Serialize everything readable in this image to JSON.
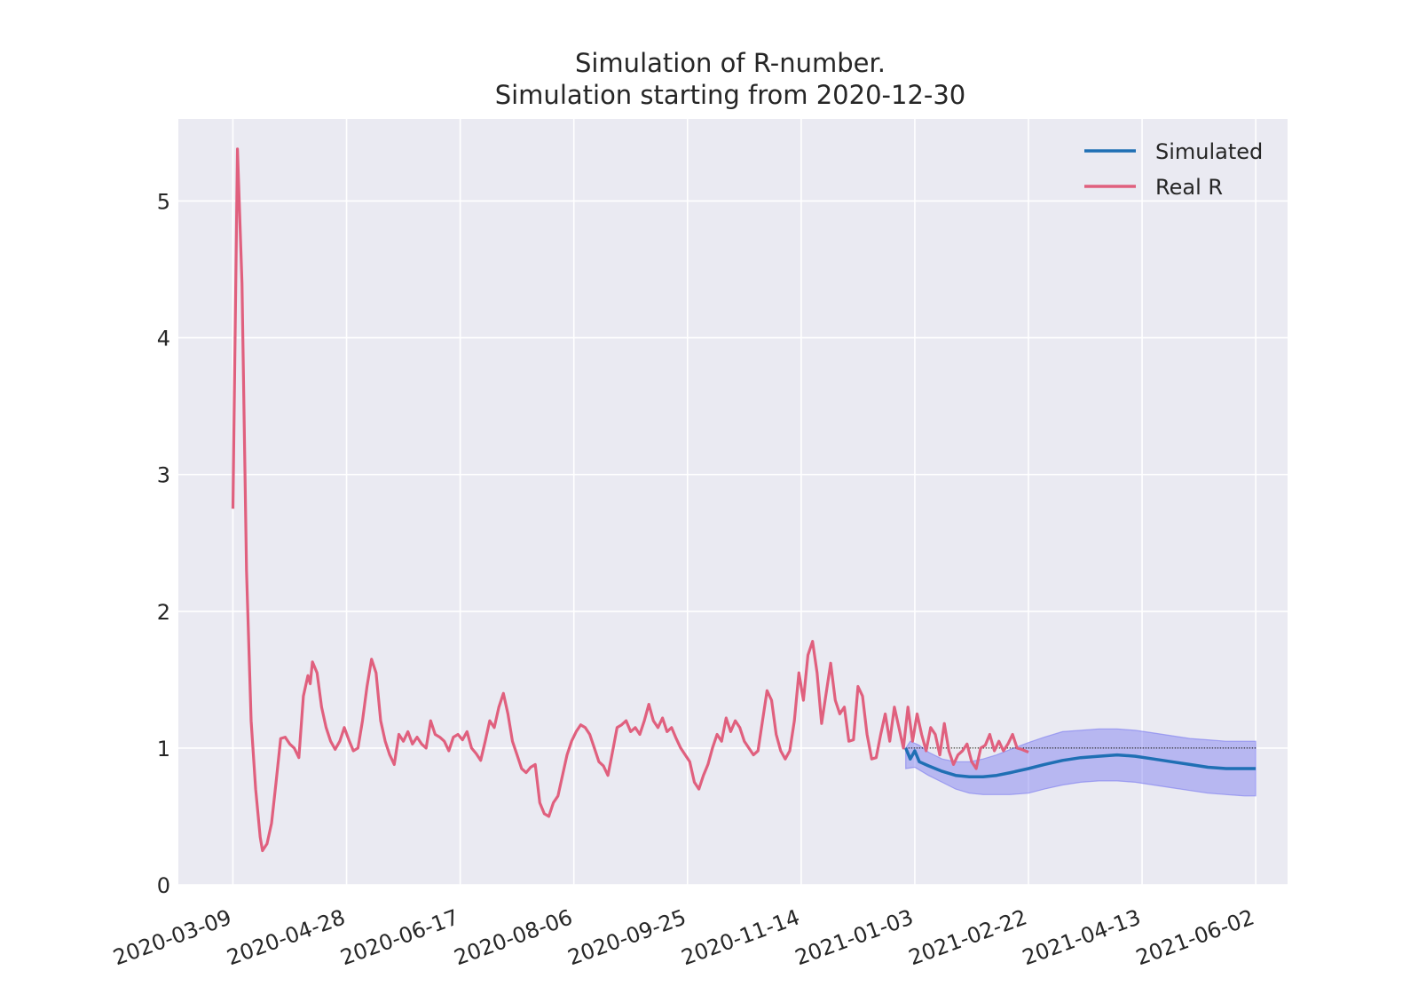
{
  "chart_data": {
    "type": "line",
    "title": [
      "Simulation of R-number.",
      "Simulation starting from 2020-12-30"
    ],
    "xlabel": "",
    "ylabel": "",
    "x_range": [
      "2020-02-14",
      "2021-06-16"
    ],
    "ylim": [
      0,
      5.6
    ],
    "grid": true,
    "legend_placement": "top-right",
    "x_ticks": [
      "2020-03-09",
      "2020-04-28",
      "2020-06-17",
      "2020-08-06",
      "2020-09-25",
      "2020-11-14",
      "2021-01-03",
      "2021-02-22",
      "2021-04-13",
      "2021-06-02"
    ],
    "y_ticks": [
      0,
      1,
      2,
      3,
      4,
      5
    ],
    "colors": {
      "background": "#eaeaf2",
      "grid": "#ffffff",
      "simulated": "#1f6fb4",
      "real": "#e0607e",
      "band": "#7b7bf0",
      "reference": "#000000"
    },
    "reference_line": {
      "y": 1.0,
      "from": "2020-12-30",
      "to": "2021-06-02"
    },
    "series": [
      {
        "name": "Real R",
        "color": "#e0607e",
        "points": [
          [
            "2020-03-09",
            2.75
          ],
          [
            "2020-03-11",
            5.38
          ],
          [
            "2020-03-13",
            4.4
          ],
          [
            "2020-03-15",
            2.3
          ],
          [
            "2020-03-17",
            1.2
          ],
          [
            "2020-03-19",
            0.7
          ],
          [
            "2020-03-21",
            0.35
          ],
          [
            "2020-03-22",
            0.25
          ],
          [
            "2020-03-24",
            0.3
          ],
          [
            "2020-03-26",
            0.45
          ],
          [
            "2020-03-28",
            0.75
          ],
          [
            "2020-03-30",
            1.07
          ],
          [
            "2020-04-01",
            1.08
          ],
          [
            "2020-04-03",
            1.03
          ],
          [
            "2020-04-05",
            1.0
          ],
          [
            "2020-04-07",
            0.93
          ],
          [
            "2020-04-09",
            1.38
          ],
          [
            "2020-04-11",
            1.53
          ],
          [
            "2020-04-12",
            1.47
          ],
          [
            "2020-04-13",
            1.63
          ],
          [
            "2020-04-15",
            1.55
          ],
          [
            "2020-04-17",
            1.3
          ],
          [
            "2020-04-19",
            1.15
          ],
          [
            "2020-04-21",
            1.05
          ],
          [
            "2020-04-23",
            0.99
          ],
          [
            "2020-04-25",
            1.05
          ],
          [
            "2020-04-27",
            1.15
          ],
          [
            "2020-04-29",
            1.06
          ],
          [
            "2020-05-01",
            0.98
          ],
          [
            "2020-05-03",
            1.0
          ],
          [
            "2020-05-05",
            1.2
          ],
          [
            "2020-05-07",
            1.45
          ],
          [
            "2020-05-09",
            1.65
          ],
          [
            "2020-05-11",
            1.55
          ],
          [
            "2020-05-13",
            1.2
          ],
          [
            "2020-05-15",
            1.05
          ],
          [
            "2020-05-17",
            0.95
          ],
          [
            "2020-05-19",
            0.88
          ],
          [
            "2020-05-21",
            1.1
          ],
          [
            "2020-05-23",
            1.05
          ],
          [
            "2020-05-25",
            1.12
          ],
          [
            "2020-05-27",
            1.03
          ],
          [
            "2020-05-29",
            1.08
          ],
          [
            "2020-05-31",
            1.03
          ],
          [
            "2020-06-02",
            1.0
          ],
          [
            "2020-06-04",
            1.2
          ],
          [
            "2020-06-06",
            1.1
          ],
          [
            "2020-06-08",
            1.08
          ],
          [
            "2020-06-10",
            1.05
          ],
          [
            "2020-06-12",
            0.98
          ],
          [
            "2020-06-14",
            1.08
          ],
          [
            "2020-06-16",
            1.1
          ],
          [
            "2020-06-18",
            1.06
          ],
          [
            "2020-06-20",
            1.12
          ],
          [
            "2020-06-22",
            1.0
          ],
          [
            "2020-06-24",
            0.96
          ],
          [
            "2020-06-26",
            0.91
          ],
          [
            "2020-06-28",
            1.05
          ],
          [
            "2020-06-30",
            1.2
          ],
          [
            "2020-07-02",
            1.15
          ],
          [
            "2020-07-04",
            1.3
          ],
          [
            "2020-07-06",
            1.4
          ],
          [
            "2020-07-08",
            1.25
          ],
          [
            "2020-07-10",
            1.05
          ],
          [
            "2020-07-12",
            0.95
          ],
          [
            "2020-07-14",
            0.85
          ],
          [
            "2020-07-16",
            0.82
          ],
          [
            "2020-07-18",
            0.86
          ],
          [
            "2020-07-20",
            0.88
          ],
          [
            "2020-07-22",
            0.6
          ],
          [
            "2020-07-24",
            0.52
          ],
          [
            "2020-07-26",
            0.5
          ],
          [
            "2020-07-28",
            0.6
          ],
          [
            "2020-07-30",
            0.65
          ],
          [
            "2020-08-01",
            0.8
          ],
          [
            "2020-08-03",
            0.95
          ],
          [
            "2020-08-05",
            1.05
          ],
          [
            "2020-08-07",
            1.12
          ],
          [
            "2020-08-09",
            1.17
          ],
          [
            "2020-08-11",
            1.15
          ],
          [
            "2020-08-13",
            1.1
          ],
          [
            "2020-08-15",
            1.0
          ],
          [
            "2020-08-17",
            0.9
          ],
          [
            "2020-08-19",
            0.87
          ],
          [
            "2020-08-21",
            0.8
          ],
          [
            "2020-08-23",
            0.97
          ],
          [
            "2020-08-25",
            1.15
          ],
          [
            "2020-08-27",
            1.17
          ],
          [
            "2020-08-29",
            1.2
          ],
          [
            "2020-08-31",
            1.12
          ],
          [
            "2020-09-02",
            1.15
          ],
          [
            "2020-09-04",
            1.1
          ],
          [
            "2020-09-06",
            1.2
          ],
          [
            "2020-09-08",
            1.32
          ],
          [
            "2020-09-10",
            1.2
          ],
          [
            "2020-09-12",
            1.15
          ],
          [
            "2020-09-14",
            1.22
          ],
          [
            "2020-09-16",
            1.12
          ],
          [
            "2020-09-18",
            1.15
          ],
          [
            "2020-09-20",
            1.07
          ],
          [
            "2020-09-22",
            1.0
          ],
          [
            "2020-09-24",
            0.95
          ],
          [
            "2020-09-26",
            0.9
          ],
          [
            "2020-09-28",
            0.75
          ],
          [
            "2020-09-30",
            0.7
          ],
          [
            "2020-10-02",
            0.8
          ],
          [
            "2020-10-04",
            0.88
          ],
          [
            "2020-10-06",
            1.0
          ],
          [
            "2020-10-08",
            1.1
          ],
          [
            "2020-10-10",
            1.05
          ],
          [
            "2020-10-12",
            1.22
          ],
          [
            "2020-10-14",
            1.12
          ],
          [
            "2020-10-16",
            1.2
          ],
          [
            "2020-10-18",
            1.15
          ],
          [
            "2020-10-20",
            1.05
          ],
          [
            "2020-10-22",
            1.0
          ],
          [
            "2020-10-24",
            0.95
          ],
          [
            "2020-10-26",
            0.98
          ],
          [
            "2020-10-28",
            1.2
          ],
          [
            "2020-10-30",
            1.42
          ],
          [
            "2020-11-01",
            1.35
          ],
          [
            "2020-11-03",
            1.1
          ],
          [
            "2020-11-05",
            0.98
          ],
          [
            "2020-11-07",
            0.92
          ],
          [
            "2020-11-09",
            0.98
          ],
          [
            "2020-11-11",
            1.2
          ],
          [
            "2020-11-13",
            1.55
          ],
          [
            "2020-11-15",
            1.35
          ],
          [
            "2020-11-17",
            1.68
          ],
          [
            "2020-11-19",
            1.78
          ],
          [
            "2020-11-21",
            1.55
          ],
          [
            "2020-11-23",
            1.18
          ],
          [
            "2020-11-25",
            1.4
          ],
          [
            "2020-11-27",
            1.62
          ],
          [
            "2020-11-29",
            1.35
          ],
          [
            "2020-12-01",
            1.25
          ],
          [
            "2020-12-03",
            1.3
          ],
          [
            "2020-12-05",
            1.05
          ],
          [
            "2020-12-07",
            1.06
          ],
          [
            "2020-12-09",
            1.45
          ],
          [
            "2020-12-11",
            1.38
          ],
          [
            "2020-12-13",
            1.1
          ],
          [
            "2020-12-15",
            0.92
          ],
          [
            "2020-12-17",
            0.93
          ],
          [
            "2020-12-19",
            1.1
          ],
          [
            "2020-12-21",
            1.25
          ],
          [
            "2020-12-23",
            1.05
          ],
          [
            "2020-12-25",
            1.3
          ],
          [
            "2020-12-27",
            1.15
          ],
          [
            "2020-12-29",
            1.0
          ],
          [
            "2020-12-31",
            1.3
          ],
          [
            "2021-01-02",
            1.05
          ],
          [
            "2021-01-04",
            1.25
          ],
          [
            "2021-01-06",
            1.1
          ],
          [
            "2021-01-08",
            0.98
          ],
          [
            "2021-01-10",
            1.15
          ],
          [
            "2021-01-12",
            1.1
          ],
          [
            "2021-01-14",
            0.95
          ],
          [
            "2021-01-16",
            1.18
          ],
          [
            "2021-01-18",
            0.98
          ],
          [
            "2021-01-20",
            0.88
          ],
          [
            "2021-01-22",
            0.95
          ],
          [
            "2021-01-24",
            0.98
          ],
          [
            "2021-01-26",
            1.03
          ],
          [
            "2021-01-28",
            0.9
          ],
          [
            "2021-01-30",
            0.85
          ],
          [
            "2021-02-01",
            1.0
          ],
          [
            "2021-02-03",
            1.02
          ],
          [
            "2021-02-05",
            1.1
          ],
          [
            "2021-02-07",
            0.98
          ],
          [
            "2021-02-09",
            1.05
          ],
          [
            "2021-02-11",
            0.98
          ],
          [
            "2021-02-13",
            1.03
          ],
          [
            "2021-02-15",
            1.1
          ],
          [
            "2021-02-17",
            1.0
          ],
          [
            "2021-02-19",
            0.99
          ],
          [
            "2021-02-22",
            0.97
          ]
        ]
      },
      {
        "name": "Simulated",
        "color": "#1f6fb4",
        "points": [
          [
            "2020-12-30",
            1.0
          ],
          [
            "2021-01-01",
            0.92
          ],
          [
            "2021-01-03",
            0.98
          ],
          [
            "2021-01-05",
            0.9
          ],
          [
            "2021-01-09",
            0.87
          ],
          [
            "2021-01-15",
            0.83
          ],
          [
            "2021-01-21",
            0.8
          ],
          [
            "2021-01-27",
            0.79
          ],
          [
            "2021-02-02",
            0.79
          ],
          [
            "2021-02-08",
            0.8
          ],
          [
            "2021-02-14",
            0.82
          ],
          [
            "2021-02-22",
            0.85
          ],
          [
            "2021-03-01",
            0.88
          ],
          [
            "2021-03-09",
            0.91
          ],
          [
            "2021-03-17",
            0.93
          ],
          [
            "2021-03-25",
            0.94
          ],
          [
            "2021-04-02",
            0.95
          ],
          [
            "2021-04-10",
            0.94
          ],
          [
            "2021-04-18",
            0.92
          ],
          [
            "2021-04-26",
            0.9
          ],
          [
            "2021-05-04",
            0.88
          ],
          [
            "2021-05-12",
            0.86
          ],
          [
            "2021-05-20",
            0.85
          ],
          [
            "2021-05-28",
            0.85
          ],
          [
            "2021-06-02",
            0.85
          ]
        ],
        "band_lower": [
          [
            "2020-12-30",
            0.85
          ],
          [
            "2021-01-03",
            0.86
          ],
          [
            "2021-01-09",
            0.8
          ],
          [
            "2021-01-15",
            0.75
          ],
          [
            "2021-01-21",
            0.7
          ],
          [
            "2021-01-27",
            0.67
          ],
          [
            "2021-02-02",
            0.66
          ],
          [
            "2021-02-08",
            0.66
          ],
          [
            "2021-02-14",
            0.66
          ],
          [
            "2021-02-22",
            0.67
          ],
          [
            "2021-03-01",
            0.7
          ],
          [
            "2021-03-09",
            0.73
          ],
          [
            "2021-03-17",
            0.75
          ],
          [
            "2021-03-25",
            0.76
          ],
          [
            "2021-04-02",
            0.76
          ],
          [
            "2021-04-10",
            0.75
          ],
          [
            "2021-04-18",
            0.73
          ],
          [
            "2021-04-26",
            0.71
          ],
          [
            "2021-05-04",
            0.69
          ],
          [
            "2021-05-12",
            0.67
          ],
          [
            "2021-05-20",
            0.66
          ],
          [
            "2021-05-28",
            0.65
          ],
          [
            "2021-06-02",
            0.65
          ]
        ],
        "band_upper": [
          [
            "2020-12-30",
            1.0
          ],
          [
            "2021-01-01",
            1.05
          ],
          [
            "2021-01-05",
            1.02
          ],
          [
            "2021-01-09",
            0.97
          ],
          [
            "2021-01-15",
            0.92
          ],
          [
            "2021-01-21",
            0.9
          ],
          [
            "2021-01-27",
            0.9
          ],
          [
            "2021-02-02",
            0.92
          ],
          [
            "2021-02-08",
            0.95
          ],
          [
            "2021-02-14",
            0.99
          ],
          [
            "2021-02-22",
            1.04
          ],
          [
            "2021-03-01",
            1.08
          ],
          [
            "2021-03-09",
            1.12
          ],
          [
            "2021-03-17",
            1.13
          ],
          [
            "2021-03-25",
            1.14
          ],
          [
            "2021-04-02",
            1.14
          ],
          [
            "2021-04-10",
            1.13
          ],
          [
            "2021-04-18",
            1.11
          ],
          [
            "2021-04-26",
            1.09
          ],
          [
            "2021-05-04",
            1.07
          ],
          [
            "2021-05-12",
            1.06
          ],
          [
            "2021-05-20",
            1.05
          ],
          [
            "2021-05-28",
            1.05
          ],
          [
            "2021-06-02",
            1.05
          ]
        ]
      }
    ]
  }
}
